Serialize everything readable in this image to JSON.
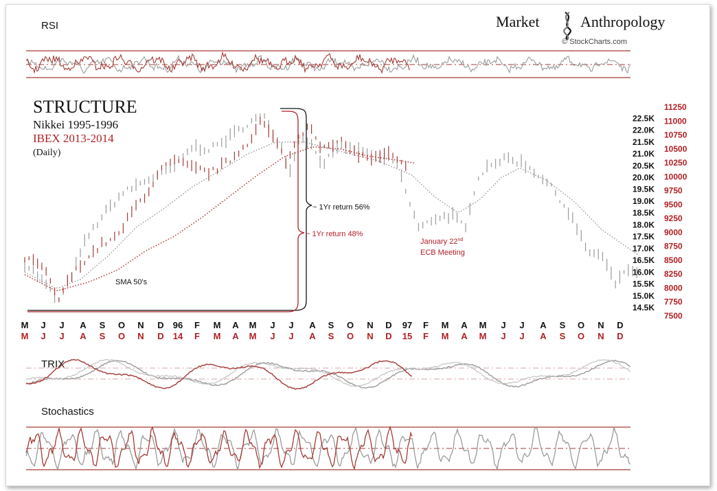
{
  "brand": {
    "name_left": "Market",
    "name_right": "Anthropology",
    "credit": "© StockCharts.com"
  },
  "panels": {
    "rsi_label": "RSI",
    "trix_label": "TRIX",
    "stoch_label": "Stochastics"
  },
  "colors": {
    "series_a": "#9a9a9a",
    "series_b": "#a33a35",
    "axis_red": "#b11e23",
    "text": "#111111"
  },
  "chart_data": {
    "type": "line",
    "title": "STRUCTURE",
    "subtitle_1": "Nikkei 1995-1996",
    "subtitle_2": "IBEX  2013-2014",
    "subtitle_3": "(Daily)",
    "annotations": {
      "sma": "SMA 50's",
      "return_a": "~ 1Yr return 56%",
      "return_b": "~ 1Yr return 48%",
      "event_line1": "January 22",
      "event_sup": "nd",
      "event_line2": "ECB Meeting"
    },
    "y_axis_left": {
      "labels": [
        "22.5K",
        "22.0K",
        "21.5K",
        "21.0K",
        "20.5K",
        "20.0K",
        "19.5K",
        "19.0K",
        "18.5K",
        "18.0K",
        "17.5K",
        "17.0K",
        "16.5K",
        "16.0K",
        "15.5K",
        "15.0K",
        "14.5K"
      ],
      "range": [
        14500,
        22800
      ]
    },
    "y_axis_right": {
      "labels": [
        "11250",
        "11000",
        "10750",
        "10500",
        "10250",
        "10000",
        "9750",
        "9500",
        "9250",
        "9000",
        "8750",
        "8500",
        "8250",
        "8000",
        "7750",
        "7500"
      ],
      "range": [
        7500,
        11250
      ]
    },
    "x_axis_top": [
      "M",
      "J",
      "J",
      "A",
      "S",
      "O",
      "N",
      "D",
      "96",
      "F",
      "M",
      "A",
      "M",
      "J",
      "J",
      "A",
      "S",
      "O",
      "N",
      "D",
      "97",
      "F",
      "M",
      "A",
      "M",
      "J",
      "J",
      "A",
      "S",
      "O",
      "N",
      "D"
    ],
    "x_axis_bottom": [
      "M",
      "J",
      "J",
      "A",
      "S",
      "O",
      "N",
      "D",
      "14",
      "F",
      "M",
      "A",
      "M",
      "J",
      "J",
      "A",
      "S",
      "O",
      "N",
      "D",
      "15",
      "F",
      "M",
      "A",
      "M",
      "J",
      "J",
      "A",
      "S",
      "O",
      "N",
      "D"
    ],
    "series": [
      {
        "name": "Nikkei 1995-1996",
        "anchors": [
          [
            0,
            16400
          ],
          [
            1,
            15600
          ],
          [
            1.8,
            14750
          ],
          [
            2.5,
            15800
          ],
          [
            3.3,
            17400
          ],
          [
            4.2,
            18400
          ],
          [
            5.2,
            19300
          ],
          [
            6.3,
            19800
          ],
          [
            7.2,
            20100
          ],
          [
            8,
            20400
          ],
          [
            9,
            21300
          ],
          [
            10,
            21200
          ],
          [
            11,
            21700
          ],
          [
            12,
            22300
          ],
          [
            12.8,
            22600
          ],
          [
            13.5,
            21700
          ],
          [
            14.3,
            20300
          ],
          [
            14.8,
            21800
          ],
          [
            15.3,
            21500
          ],
          [
            16,
            20600
          ],
          [
            17,
            21300
          ],
          [
            18,
            21200
          ],
          [
            19,
            20800
          ],
          [
            20,
            20600
          ],
          [
            20.6,
            19100
          ],
          [
            21.2,
            17800
          ],
          [
            22,
            18300
          ],
          [
            23,
            18400
          ],
          [
            23.7,
            17800
          ],
          [
            24.3,
            20000
          ],
          [
            25,
            20600
          ],
          [
            26,
            20800
          ],
          [
            26.8,
            20600
          ],
          [
            27.8,
            20000
          ],
          [
            28.6,
            19300
          ],
          [
            29.4,
            18300
          ],
          [
            30.2,
            16900
          ],
          [
            31,
            16700
          ],
          [
            31.8,
            15400
          ],
          [
            32.3,
            16200
          ],
          [
            33,
            15800
          ]
        ],
        "sma_anchors": [
          [
            0,
            16000
          ],
          [
            1.7,
            15300
          ],
          [
            3,
            15700
          ],
          [
            4.5,
            16700
          ],
          [
            6,
            17900
          ],
          [
            7.5,
            18700
          ],
          [
            9,
            19600
          ],
          [
            10.5,
            20300
          ],
          [
            12,
            21000
          ],
          [
            13.5,
            21500
          ],
          [
            15,
            21500
          ],
          [
            17,
            21100
          ],
          [
            19,
            20700
          ],
          [
            20.8,
            20100
          ],
          [
            22,
            19200
          ],
          [
            23.3,
            18500
          ],
          [
            24.5,
            19100
          ],
          [
            25.6,
            20000
          ],
          [
            26.6,
            20400
          ],
          [
            28,
            19900
          ],
          [
            29.5,
            19000
          ],
          [
            31,
            17800
          ],
          [
            33,
            16700
          ]
        ]
      },
      {
        "name": "IBEX  2013-2014",
        "anchors": [
          [
            0,
            16600
          ],
          [
            1,
            16200
          ],
          [
            1.8,
            14800
          ],
          [
            2.4,
            15700
          ],
          [
            3.2,
            16500
          ],
          [
            4.2,
            17200
          ],
          [
            5,
            17500
          ],
          [
            5.8,
            18600
          ],
          [
            6.7,
            19500
          ],
          [
            7.3,
            20300
          ],
          [
            8,
            20700
          ],
          [
            9,
            20400
          ],
          [
            10,
            20200
          ],
          [
            11,
            20700
          ],
          [
            12,
            21500
          ],
          [
            12.7,
            22400
          ],
          [
            13.5,
            21500
          ],
          [
            14.1,
            20600
          ],
          [
            14.6,
            21600
          ],
          [
            15.3,
            22300
          ],
          [
            16,
            21200
          ],
          [
            17,
            21500
          ],
          [
            18,
            20900
          ],
          [
            18.8,
            20800
          ],
          [
            19.6,
            21000
          ],
          [
            20.6,
            20300
          ]
        ],
        "sma_anchors": [
          [
            0,
            15900
          ],
          [
            1.7,
            15200
          ],
          [
            3.5,
            15600
          ],
          [
            5,
            16100
          ],
          [
            6.5,
            16900
          ],
          [
            8,
            17500
          ],
          [
            9.5,
            18300
          ],
          [
            11,
            19200
          ],
          [
            12.5,
            20100
          ],
          [
            14,
            20900
          ],
          [
            15.5,
            21300
          ],
          [
            17,
            21200
          ],
          [
            18.5,
            20900
          ],
          [
            20.3,
            20700
          ],
          [
            21,
            20600
          ]
        ]
      }
    ]
  }
}
